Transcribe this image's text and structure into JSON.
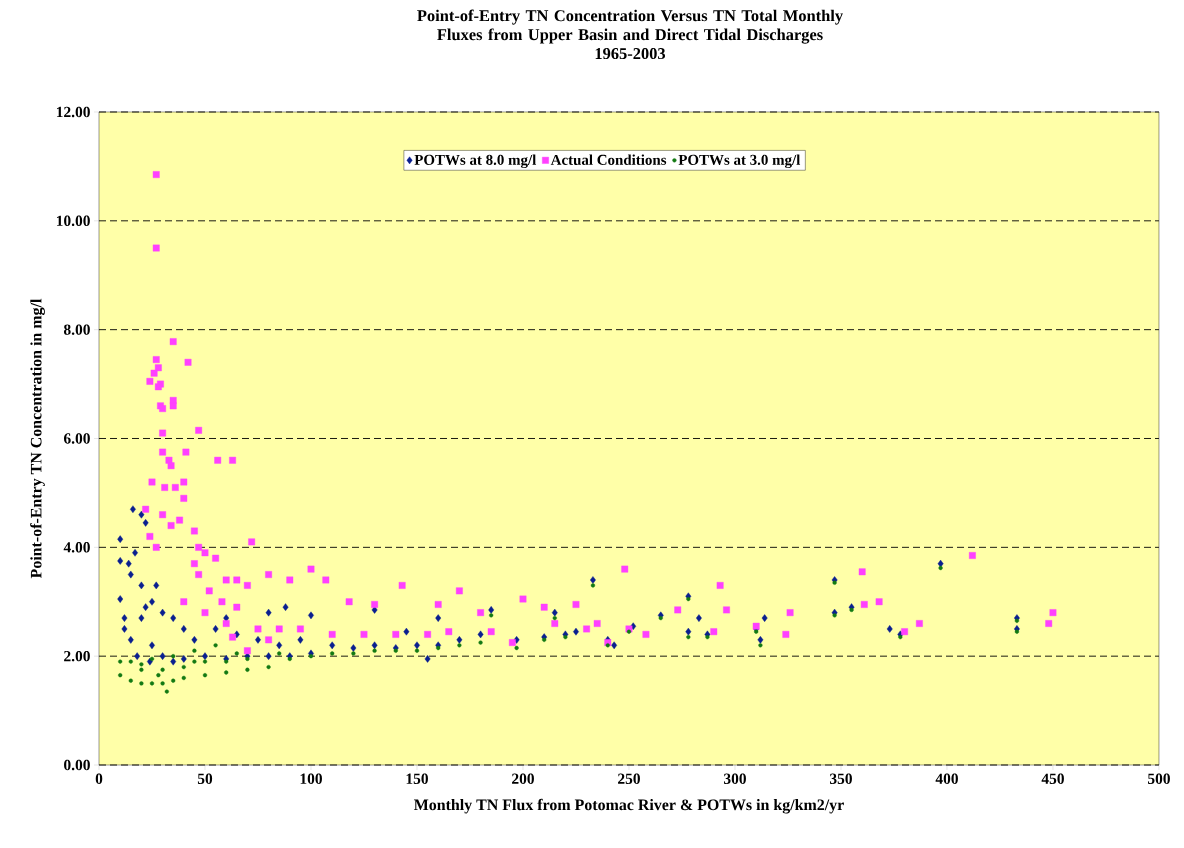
{
  "chart_data": {
    "type": "scatter",
    "title": "Point-of-Entry TN Concentration Versus TN Total Monthly Fluxes from Upper Basin and Direct Tidal Discharges",
    "subtitle": "1965-2003",
    "xlabel": "Monthly TN Flux from Potomac River & POTWs in kg/km2/yr",
    "ylabel": "Point-of-Entry TN Concentration in mg/l",
    "xlim": [
      0,
      500
    ],
    "xticks": [
      0,
      50,
      100,
      150,
      200,
      250,
      300,
      350,
      400,
      450,
      500
    ],
    "ylim": [
      0,
      12
    ],
    "yticks": [
      {
        "value": 0,
        "label": "0.00"
      },
      {
        "value": 2,
        "label": "2.00"
      },
      {
        "value": 4,
        "label": "4.00"
      },
      {
        "value": 6,
        "label": "6.00"
      },
      {
        "value": 8,
        "label": "8.00"
      },
      {
        "value": 10,
        "label": "10.00"
      },
      {
        "value": 12,
        "label": "12.00"
      }
    ],
    "grid": "y",
    "legend": "top",
    "series": [
      {
        "name": "POTWs at 8.0 mg/l",
        "color": "#0a1f8f",
        "marker": "diamond",
        "x": [
          10,
          16,
          22,
          20,
          10,
          10,
          12,
          14,
          17,
          15,
          20,
          25,
          30,
          35,
          40,
          20,
          15,
          18,
          25,
          30,
          35,
          40,
          50,
          60,
          70,
          80,
          90,
          100,
          45,
          55,
          65,
          75,
          85,
          95,
          110,
          120,
          130,
          140,
          150,
          155,
          160,
          170,
          180,
          185,
          197,
          210,
          215,
          220,
          225,
          233,
          240,
          243,
          252,
          265,
          278,
          278,
          283,
          287,
          310,
          312,
          314,
          347,
          347,
          355,
          373,
          378,
          397,
          433,
          433,
          130,
          100,
          88,
          27,
          22,
          12,
          145,
          160,
          80,
          60,
          24
        ],
        "values": [
          4.15,
          4.7,
          4.45,
          4.6,
          3.75,
          3.05,
          2.7,
          3.7,
          3.9,
          3.5,
          3.3,
          3.0,
          2.8,
          2.7,
          2.5,
          2.7,
          2.3,
          2.0,
          2.2,
          2.0,
          1.9,
          1.95,
          2.0,
          1.95,
          2.0,
          2.0,
          2.0,
          2.05,
          2.3,
          2.5,
          2.4,
          2.3,
          2.2,
          2.3,
          2.2,
          2.15,
          2.2,
          2.15,
          2.2,
          1.95,
          2.2,
          2.3,
          2.4,
          2.85,
          2.3,
          2.35,
          2.8,
          2.4,
          2.45,
          3.4,
          2.3,
          2.2,
          2.55,
          2.75,
          3.1,
          2.45,
          2.7,
          2.4,
          2.5,
          2.3,
          2.7,
          3.4,
          2.8,
          2.9,
          2.5,
          2.4,
          3.7,
          2.7,
          2.5,
          2.85,
          2.75,
          2.9,
          3.3,
          2.9,
          2.5,
          2.45,
          2.7,
          2.8,
          2.7,
          1.9
        ]
      },
      {
        "name": "Actual Conditions",
        "color": "#ff40ff",
        "marker": "square",
        "x": [
          27,
          27,
          35,
          27,
          28,
          26,
          29,
          28,
          24,
          42,
          29,
          30,
          35,
          35,
          47,
          30,
          30,
          33,
          56,
          63,
          41,
          34,
          25,
          31,
          36,
          40,
          40,
          22,
          30,
          38,
          45,
          47,
          50,
          34,
          24,
          27,
          72,
          55,
          60,
          65,
          70,
          80,
          90,
          100,
          107,
          118,
          130,
          143,
          160,
          170,
          180,
          200,
          210,
          225,
          235,
          248,
          250,
          258,
          273,
          290,
          293,
          296,
          310,
          324,
          326,
          360,
          361,
          368,
          380,
          387,
          412,
          448,
          450,
          40,
          50,
          60,
          75,
          85,
          95,
          110,
          125,
          140,
          155,
          165,
          185,
          195,
          240,
          215,
          230,
          63,
          70,
          80,
          47,
          52,
          58,
          45,
          65
        ],
        "values": [
          10.85,
          9.5,
          7.78,
          7.45,
          7.3,
          7.2,
          7.0,
          6.95,
          7.05,
          7.4,
          6.6,
          6.55,
          6.7,
          6.6,
          6.15,
          6.1,
          5.75,
          5.6,
          5.6,
          5.6,
          5.75,
          5.5,
          5.2,
          5.1,
          5.1,
          5.2,
          4.9,
          4.7,
          4.6,
          4.5,
          4.3,
          4.0,
          3.9,
          4.4,
          4.2,
          4.0,
          4.1,
          3.8,
          3.4,
          3.4,
          3.3,
          3.5,
          3.4,
          3.6,
          3.4,
          3.0,
          2.95,
          3.3,
          2.95,
          3.2,
          2.8,
          3.05,
          2.9,
          2.95,
          2.6,
          3.6,
          2.5,
          2.4,
          2.85,
          2.45,
          3.3,
          2.85,
          2.55,
          2.4,
          2.8,
          3.55,
          2.95,
          3.0,
          2.45,
          2.6,
          3.85,
          2.6,
          2.8,
          3.0,
          2.8,
          2.6,
          2.5,
          2.5,
          2.5,
          2.4,
          2.4,
          2.4,
          2.4,
          2.45,
          2.45,
          2.25,
          2.25,
          2.6,
          2.5,
          2.35,
          2.1,
          2.3,
          3.5,
          3.2,
          3.0,
          3.7,
          2.9
        ]
      },
      {
        "name": "POTWs at 3.0 mg/l",
        "color": "#137a13",
        "marker": "circle",
        "x": [
          10,
          10,
          15,
          20,
          25,
          30,
          35,
          40,
          50,
          60,
          70,
          80,
          15,
          20,
          30,
          40,
          50,
          60,
          70,
          90,
          100,
          110,
          120,
          130,
          140,
          150,
          160,
          170,
          180,
          197,
          210,
          220,
          233,
          240,
          250,
          265,
          278,
          278,
          287,
          310,
          312,
          347,
          347,
          355,
          378,
          397,
          433,
          433,
          185,
          215,
          25,
          35,
          45,
          55,
          32,
          28,
          20,
          45,
          85,
          65
        ],
        "values": [
          1.9,
          1.65,
          1.55,
          1.5,
          1.5,
          1.5,
          1.55,
          1.6,
          1.65,
          1.7,
          1.75,
          1.8,
          1.9,
          1.85,
          1.75,
          1.8,
          1.9,
          1.9,
          1.95,
          1.95,
          2.0,
          2.05,
          2.05,
          2.1,
          2.1,
          2.1,
          2.15,
          2.2,
          2.25,
          2.15,
          2.3,
          2.35,
          3.3,
          2.2,
          2.45,
          2.7,
          3.05,
          2.35,
          2.35,
          2.45,
          2.2,
          3.35,
          2.75,
          2.85,
          2.35,
          3.62,
          2.65,
          2.45,
          2.75,
          2.7,
          1.95,
          2.0,
          2.1,
          2.2,
          1.35,
          1.65,
          1.75,
          1.9,
          2.05,
          2.05
        ]
      }
    ]
  }
}
